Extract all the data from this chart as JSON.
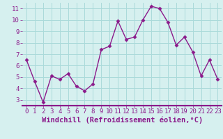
{
  "x": [
    0,
    1,
    2,
    3,
    4,
    5,
    6,
    7,
    8,
    9,
    10,
    11,
    12,
    13,
    14,
    15,
    16,
    17,
    18,
    19,
    20,
    21,
    22,
    23
  ],
  "y": [
    6.5,
    4.6,
    2.8,
    5.1,
    4.8,
    5.3,
    4.2,
    3.8,
    4.4,
    7.4,
    7.7,
    9.9,
    8.3,
    8.5,
    10.0,
    11.2,
    11.0,
    9.8,
    7.8,
    8.5,
    7.2,
    5.1,
    6.5,
    4.8
  ],
  "line_color": "#8b1a8b",
  "marker": "D",
  "markersize": 2.5,
  "linewidth": 1.0,
  "background_color": "#d6f0ef",
  "grid_color": "#aadada",
  "xlabel": "Windchill (Refroidissement éolien,°C)",
  "xlabel_fontsize": 7.5,
  "xlabel_color": "#8b1a8b",
  "xlim": [
    -0.5,
    23.5
  ],
  "ylim": [
    2.5,
    11.5
  ],
  "yticks": [
    3,
    4,
    5,
    6,
    7,
    8,
    9,
    10,
    11
  ],
  "xticks": [
    0,
    1,
    2,
    3,
    4,
    5,
    6,
    7,
    8,
    9,
    10,
    11,
    12,
    13,
    14,
    15,
    16,
    17,
    18,
    19,
    20,
    21,
    22,
    23
  ],
  "tick_fontsize": 6.5,
  "tick_color": "#8b1a8b",
  "divider_color": "#8b1a8b",
  "divider_linewidth": 1.5
}
